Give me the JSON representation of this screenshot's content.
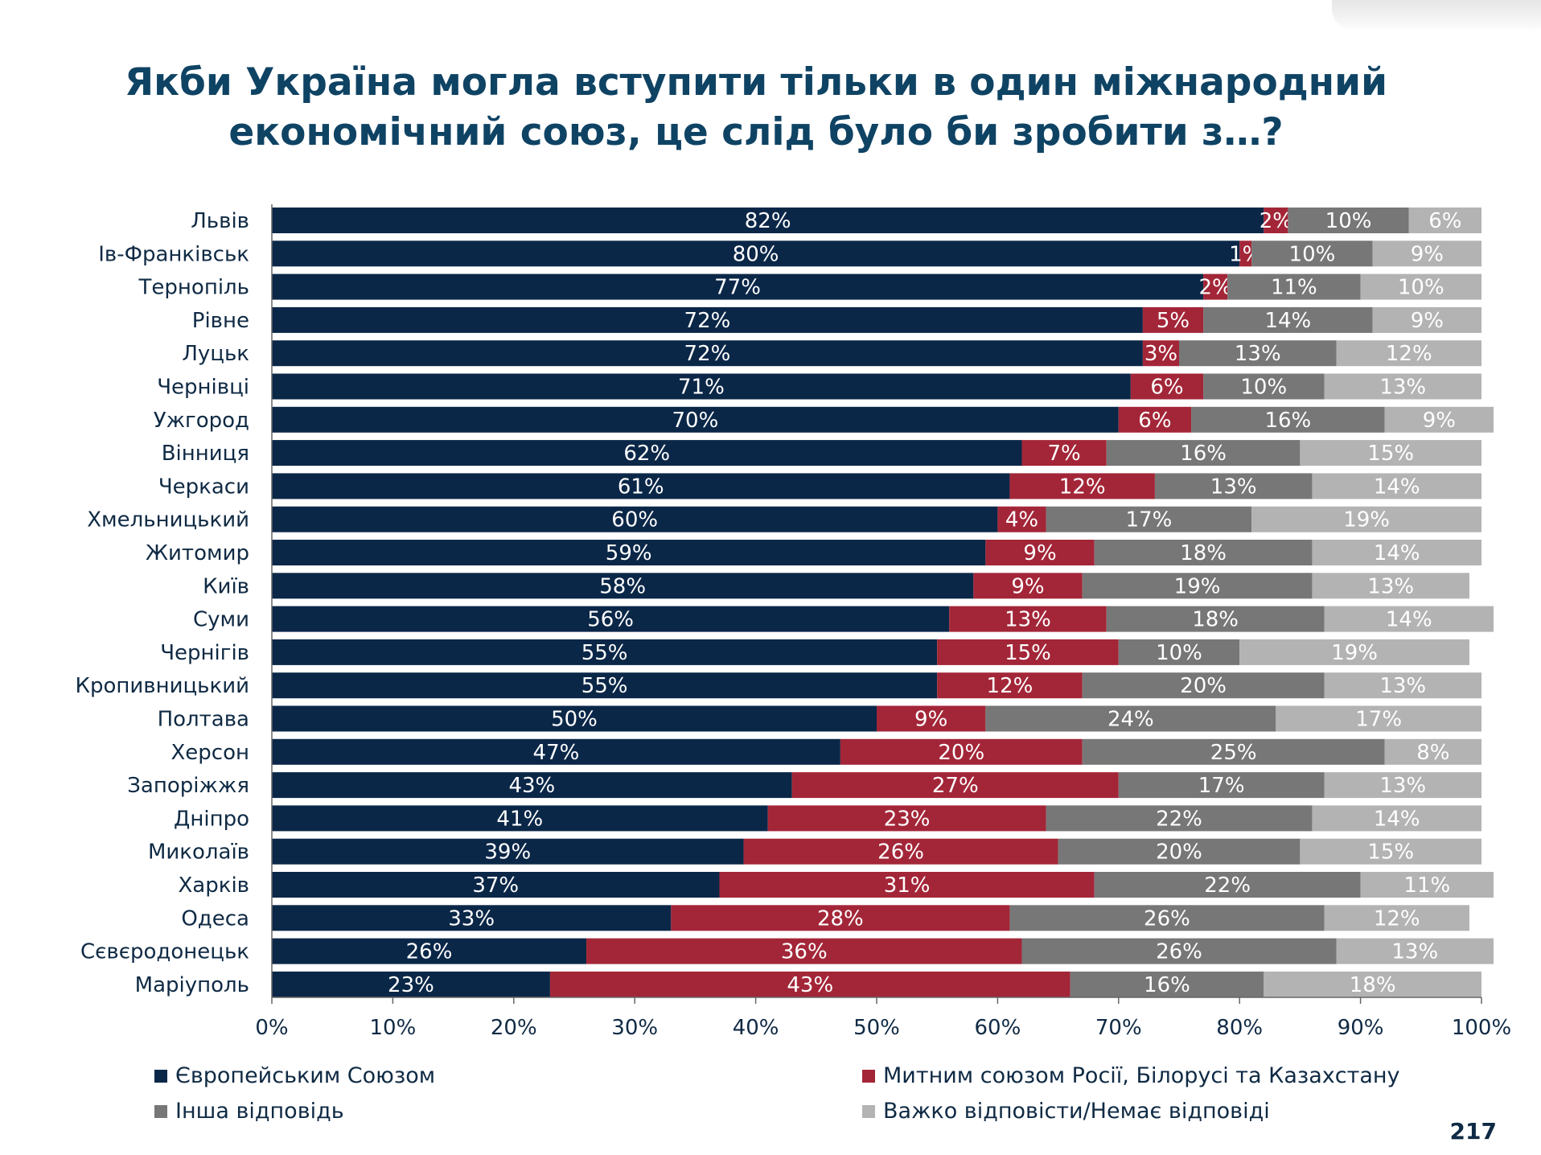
{
  "title_line1": "Якби Україна могла вступити тільки в один міжнародний",
  "title_line2": "економічний союз, це слід було би зробити з…?",
  "page_number": "217",
  "chart_data": {
    "type": "bar",
    "orientation": "horizontal",
    "stacked": true,
    "xlim": [
      0,
      100
    ],
    "x_ticks": [
      "0%",
      "10%",
      "20%",
      "30%",
      "40%",
      "50%",
      "60%",
      "70%",
      "80%",
      "90%",
      "100%"
    ],
    "legend_position": "bottom",
    "categories": [
      "Львів",
      "Ів-Франківськ",
      "Тернопіль",
      "Рівне",
      "Луцьк",
      "Чернівці",
      "Ужгород",
      "Вінниця",
      "Черкаси",
      "Хмельницький",
      "Житомир",
      "Київ",
      "Суми",
      "Чернігів",
      "Кропивницький",
      "Полтава",
      "Херсон",
      "Запоріжжя",
      "Дніпро",
      "Миколаїв",
      "Харків",
      "Одеса",
      "Сєвєродонецьк",
      "Маріуполь"
    ],
    "series": [
      {
        "name": "Європейським Союзом",
        "color": "#0b2748",
        "values": [
          82,
          80,
          77,
          72,
          72,
          71,
          70,
          62,
          61,
          60,
          59,
          58,
          56,
          55,
          55,
          50,
          47,
          43,
          41,
          39,
          37,
          33,
          26,
          23
        ]
      },
      {
        "name": "Митним союзом Росії, Білорусі та Казахстану",
        "color": "#a32638",
        "values": [
          2,
          1,
          2,
          5,
          3,
          6,
          6,
          7,
          12,
          4,
          9,
          9,
          13,
          15,
          12,
          9,
          20,
          27,
          23,
          26,
          31,
          28,
          36,
          43
        ]
      },
      {
        "name": "Інша відповідь",
        "color": "#777777",
        "values": [
          10,
          10,
          11,
          14,
          13,
          10,
          16,
          16,
          13,
          17,
          18,
          19,
          18,
          10,
          20,
          24,
          25,
          17,
          22,
          20,
          22,
          26,
          26,
          16
        ]
      },
      {
        "name": "Важко відповісти/Немає відповіді",
        "color": "#b3b3b3",
        "values": [
          6,
          9,
          10,
          9,
          12,
          13,
          9,
          15,
          14,
          19,
          14,
          13,
          14,
          19,
          13,
          17,
          8,
          13,
          14,
          15,
          11,
          12,
          13,
          18
        ]
      }
    ]
  }
}
